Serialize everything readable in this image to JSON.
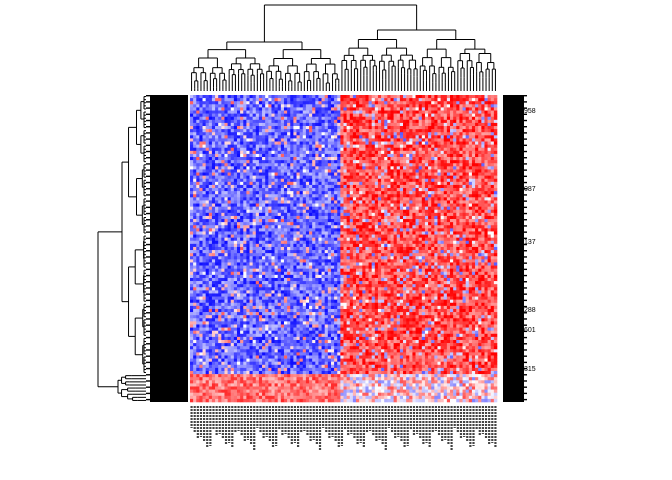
{
  "chart_data": {
    "type": "heatmap",
    "title": "",
    "xlabel": "",
    "ylabel": "",
    "color_scale": {
      "low": "#0000ff",
      "mid": "#ffffff",
      "high": "#ff0000"
    },
    "grid": false,
    "legend": "none",
    "column_dendrogram": true,
    "row_dendrogram": true,
    "row_labels_visible": [
      "958",
      "087",
      "137",
      "288",
      "601",
      "315"
    ],
    "column_groups": [
      {
        "description": "left cluster",
        "columns": 48,
        "tendency": "blue/low"
      },
      {
        "description": "right cluster",
        "columns": 50,
        "tendency": "red/high"
      }
    ],
    "row_groups": [
      {
        "rows": 90,
        "left": "low",
        "right": "high"
      },
      {
        "rows": 9,
        "left": "high",
        "right": "mixed"
      }
    ],
    "n_rows": 99,
    "n_cols": 98
  }
}
